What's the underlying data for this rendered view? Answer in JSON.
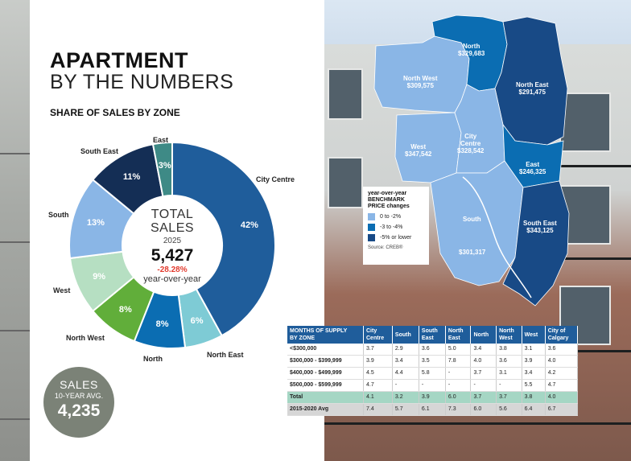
{
  "header": {
    "title_bold": "APARTMENT",
    "title_light": "BY THE NUMBERS",
    "subtitle": "SHARE OF SALES BY ZONE"
  },
  "chart_data": {
    "type": "pie",
    "title": "SHARE OF SALES BY ZONE",
    "categories": [
      "City Centre",
      "North East",
      "North",
      "North West",
      "West",
      "South",
      "South East",
      "East"
    ],
    "values": [
      42,
      6,
      8,
      8,
      9,
      13,
      11,
      3
    ],
    "value_labels": [
      "42%",
      "6%",
      "8%",
      "8%",
      "9%",
      "13%",
      "11%",
      "3%"
    ],
    "colors": [
      "#1f5d9b",
      "#7ecbd5",
      "#0b6db2",
      "#61ae3a",
      "#b6dfc2",
      "#8ab6e6",
      "#142e55",
      "#3e8a86"
    ],
    "label_colors": [
      "#ffffff",
      "#ffffff",
      "#ffffff",
      "#ffffff",
      "#ffffff",
      "#ffffff",
      "#ffffff",
      "#ffffff"
    ]
  },
  "donut_center": {
    "line1": "TOTAL",
    "line2": "SALES",
    "year": "2025",
    "total": "5,427",
    "change": "-28.28%",
    "change_label": "year-over-year"
  },
  "avg_badge": {
    "line1": "SALES",
    "line2": "10-YEAR AVG.",
    "value": "4,235"
  },
  "map": {
    "regions": [
      {
        "name": "North",
        "price": "$329,683"
      },
      {
        "name": "North West",
        "price": "$309,575"
      },
      {
        "name": "North East",
        "price": "$291,475"
      },
      {
        "name": "City Centre",
        "price": "$328,542",
        "name_line2": "Centre",
        "name_line1": "City"
      },
      {
        "name": "West",
        "price": "$347,542"
      },
      {
        "name": "East",
        "price": "$246,325"
      },
      {
        "name": "South",
        "price": "$301,317"
      },
      {
        "name": "South East",
        "price": "$343,125"
      }
    ],
    "legend": {
      "title_line1": "year-over-year",
      "title_line2": "BENCHMARK",
      "title_line3": "PRICE changes",
      "items": [
        {
          "label": "0 to -2%",
          "color": "#8ab6e6"
        },
        {
          "label": "-3 to -4%",
          "color": "#0b6db2"
        },
        {
          "label": "-5% or lower",
          "color": "#184a86"
        }
      ],
      "source": "Source: CREB®"
    }
  },
  "supply_table": {
    "header_line1": "MONTHS OF SUPPLY",
    "header_line2": "BY ZONE",
    "columns": [
      {
        "l1": "City",
        "l2": "Centre"
      },
      {
        "l1": "South",
        "l2": ""
      },
      {
        "l1": "South",
        "l2": "East"
      },
      {
        "l1": "North",
        "l2": "East"
      },
      {
        "l1": "North",
        "l2": ""
      },
      {
        "l1": "North",
        "l2": "West"
      },
      {
        "l1": "West",
        "l2": ""
      },
      {
        "l1": "City of",
        "l2": "Calgary"
      }
    ],
    "rows": [
      {
        "label": "<$300,000",
        "values": [
          "3.7",
          "2.9",
          "3.6",
          "5.0",
          "3.4",
          "3.8",
          "3.1",
          "3.6"
        ]
      },
      {
        "label": "$300,000 - $399,999",
        "values": [
          "3.9",
          "3.4",
          "3.5",
          "7.8",
          "4.0",
          "3.6",
          "3.9",
          "4.0"
        ]
      },
      {
        "label": "$400,000 - $499,999",
        "values": [
          "4.5",
          "4.4",
          "5.8",
          "-",
          "3.7",
          "3.1",
          "3.4",
          "4.2"
        ]
      },
      {
        "label": "$500,000 - $599,999",
        "values": [
          "4.7",
          "-",
          "-",
          "-",
          "-",
          "-",
          "5.5",
          "4.7"
        ]
      },
      {
        "label": "Total",
        "values": [
          "4.1",
          "3.2",
          "3.9",
          "6.0",
          "3.7",
          "3.7",
          "3.8",
          "4.0"
        ]
      },
      {
        "label": "2015-2020 Avg",
        "values": [
          "7.4",
          "5.7",
          "6.1",
          "7.3",
          "6.0",
          "5.6",
          "6.4",
          "6.7"
        ]
      }
    ]
  }
}
